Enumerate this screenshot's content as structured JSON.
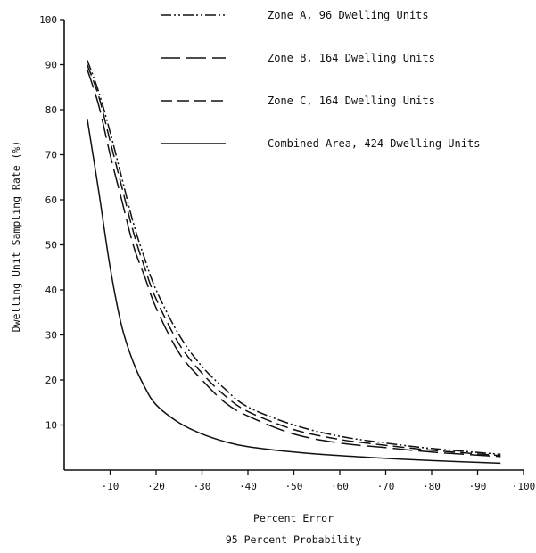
{
  "chart_data": {
    "type": "line",
    "xlabel": "Percent Error",
    "xlabel2": "95 Percent Probability",
    "ylabel": "Dwelling Unit Sampling Rate (%)",
    "xlim": [
      0,
      100
    ],
    "ylim": [
      0,
      100
    ],
    "x_ticks": [
      {
        "value": 10,
        "label": "·10"
      },
      {
        "value": 20,
        "label": "·20"
      },
      {
        "value": 30,
        "label": "·30"
      },
      {
        "value": 40,
        "label": "·40"
      },
      {
        "value": 50,
        "label": "·50"
      },
      {
        "value": 60,
        "label": "·60"
      },
      {
        "value": 70,
        "label": "·70"
      },
      {
        "value": 80,
        "label": "·80"
      },
      {
        "value": 90,
        "label": "·90"
      },
      {
        "value": 100,
        "label": "·100"
      }
    ],
    "y_ticks": [
      {
        "value": 10,
        "label": "10"
      },
      {
        "value": 20,
        "label": "20"
      },
      {
        "value": 30,
        "label": "30"
      },
      {
        "value": 40,
        "label": "40"
      },
      {
        "value": 50,
        "label": "50"
      },
      {
        "value": 60,
        "label": "60"
      },
      {
        "value": 70,
        "label": "70"
      },
      {
        "value": 80,
        "label": "80"
      },
      {
        "value": 90,
        "label": "90"
      },
      {
        "value": 100,
        "label": "100"
      }
    ],
    "grid": false,
    "legend_position": "top-right",
    "series": [
      {
        "name": "Zone A, 96 Dwelling Units",
        "style": "dash-dot-dot",
        "x": [
          5,
          7.5,
          10,
          12.5,
          15,
          17.5,
          20,
          25,
          30,
          35,
          40,
          50,
          60,
          70,
          80,
          95
        ],
        "y": [
          91,
          84,
          75,
          65,
          55,
          47,
          40,
          30,
          23,
          18,
          14,
          10,
          7.5,
          6,
          4.8,
          3.5
        ]
      },
      {
        "name": "Zone B, 164 Dwelling Units",
        "style": "long-dash",
        "x": [
          5,
          7.5,
          10,
          12.5,
          15,
          17.5,
          20,
          25,
          30,
          35,
          40,
          50,
          60,
          70,
          80,
          95
        ],
        "y": [
          89,
          81,
          70,
          60,
          50,
          43,
          36,
          26,
          20,
          15,
          12,
          8,
          6,
          5,
          4,
          3
        ]
      },
      {
        "name": "Zone C, 164 Dwelling Units",
        "style": "dash",
        "x": [
          5,
          7.5,
          10,
          12.5,
          15,
          17.5,
          20,
          25,
          30,
          35,
          40,
          50,
          60,
          70,
          80,
          95
        ],
        "y": [
          90,
          83,
          73,
          63,
          53,
          45,
          38,
          28,
          21.5,
          16.5,
          13,
          9,
          6.8,
          5.5,
          4.4,
          3.2
        ]
      },
      {
        "name": "Combined Area, 424 Dwelling Units",
        "style": "solid",
        "x": [
          5,
          7.5,
          10,
          12.5,
          15,
          17.5,
          20,
          25,
          30,
          35,
          40,
          50,
          60,
          70,
          80,
          95
        ],
        "y": [
          78,
          62,
          45,
          32,
          24,
          18.5,
          14.5,
          10.5,
          8,
          6.3,
          5.2,
          4,
          3.2,
          2.6,
          2.1,
          1.5
        ]
      }
    ]
  }
}
